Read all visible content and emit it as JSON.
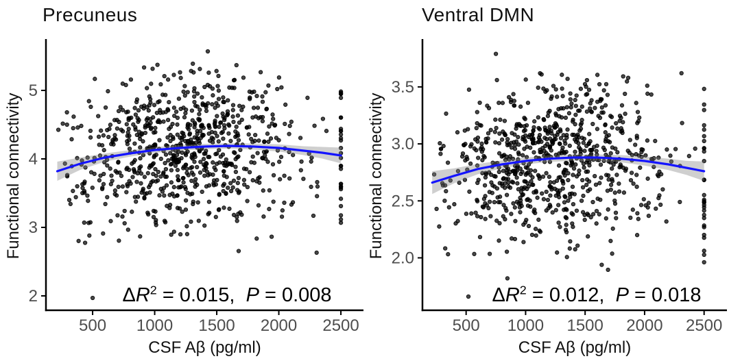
{
  "figure": {
    "background": "#ffffff",
    "colors": {
      "point": "#000000",
      "point_opacity": 0.72,
      "trend_line": "#1414ff",
      "ci_band": "#808080",
      "ci_band_opacity": 0.38,
      "axis": "#000000",
      "tick_label": "#4d4d4d",
      "title": "#111111"
    }
  },
  "chart_data": [
    {
      "type": "scatter",
      "title": "Precuneus",
      "xlabel": "CSF Aβ (pg/ml)",
      "ylabel": "Functional connectivity",
      "x_tick_labels": [
        "500",
        "1000",
        "1500",
        "2000",
        "2500"
      ],
      "x_tick_values": [
        500,
        1000,
        1500,
        2000,
        2500
      ],
      "y_tick_labels": [
        "2",
        "3",
        "4",
        "5"
      ],
      "y_tick_values": [
        2,
        3,
        4,
        5
      ],
      "xlim": [
        124,
        2682
      ],
      "ylim": [
        1.79,
        5.75
      ],
      "grid": false,
      "legend": false,
      "annotation": {
        "text": "ΔR² = 0.015, P = 0.008",
        "delta": "Δ",
        "r_symbol": "R",
        "exponent": "2",
        "r_equals": " = 0.015,  ",
        "p_symbol": "P",
        "p_equals": " = 0.008"
      },
      "trend": {
        "shape": "quadratic-smooth",
        "x": [
          215,
          400,
          600,
          800,
          1000,
          1200,
          1400,
          1600,
          1800,
          2000,
          2200,
          2350,
          2500
        ],
        "y": [
          3.82,
          3.93,
          4.02,
          4.08,
          4.13,
          4.16,
          4.18,
          4.19,
          4.18,
          4.16,
          4.12,
          4.09,
          4.05
        ],
        "ci_halfwidth": [
          0.14,
          0.09,
          0.06,
          0.047,
          0.042,
          0.04,
          0.04,
          0.04,
          0.045,
          0.052,
          0.065,
          0.085,
          0.115
        ]
      },
      "scatter_summary": {
        "n_points": 810,
        "x_mean": 1250,
        "x_sd": 480,
        "x_range": [
          215,
          2450
        ],
        "y_noise_sd": 0.55,
        "y_range": [
          2.56,
          5.4
        ],
        "clipped_column": {
          "x": 2500,
          "n": 30,
          "y_range": [
            2.4,
            5.0
          ]
        },
        "outlier_points": [
          [
            500,
            1.97
          ],
          [
            1428,
            5.57
          ]
        ]
      }
    },
    {
      "type": "scatter",
      "title": "Ventral DMN",
      "xlabel": "CSF Aβ (pg/ml)",
      "ylabel": "Functional connectivity",
      "x_tick_labels": [
        "500",
        "1000",
        "1500",
        "2000",
        "2500"
      ],
      "x_tick_values": [
        500,
        1000,
        1500,
        2000,
        2500
      ],
      "y_tick_labels": [
        "2.0",
        "2.5",
        "3.0",
        "3.5"
      ],
      "y_tick_values": [
        2.0,
        2.5,
        3.0,
        3.5
      ],
      "xlim": [
        133,
        2692
      ],
      "ylim": [
        1.54,
        3.92
      ],
      "grid": false,
      "legend": false,
      "annotation": {
        "text": "ΔR² = 0.012, P = 0.018",
        "delta": "Δ",
        "r_symbol": "R",
        "exponent": "2",
        "r_equals": " = 0.012,  ",
        "p_symbol": "P",
        "p_equals": " = 0.018"
      },
      "trend": {
        "shape": "quadratic-smooth",
        "x": [
          215,
          400,
          600,
          800,
          1000,
          1200,
          1400,
          1600,
          1800,
          2000,
          2200,
          2350,
          2500
        ],
        "y": [
          2.66,
          2.72,
          2.78,
          2.82,
          2.85,
          2.87,
          2.88,
          2.88,
          2.87,
          2.85,
          2.82,
          2.79,
          2.76
        ],
        "ci_halfwidth": [
          0.1,
          0.065,
          0.045,
          0.035,
          0.03,
          0.028,
          0.028,
          0.028,
          0.032,
          0.04,
          0.05,
          0.062,
          0.085
        ]
      },
      "scatter_summary": {
        "n_points": 800,
        "x_mean": 1250,
        "x_sd": 470,
        "x_range": [
          230,
          2440
        ],
        "y_noise_sd": 0.34,
        "y_range": [
          1.85,
          3.62
        ],
        "clipped_column": {
          "x": 2500,
          "n": 30,
          "y_range": [
            1.95,
            3.65
          ]
        },
        "outlier_points": [
          [
            519,
            1.66
          ],
          [
            847,
            1.82
          ],
          [
            750,
            3.79
          ],
          [
            2310,
            3.62
          ]
        ]
      }
    }
  ]
}
